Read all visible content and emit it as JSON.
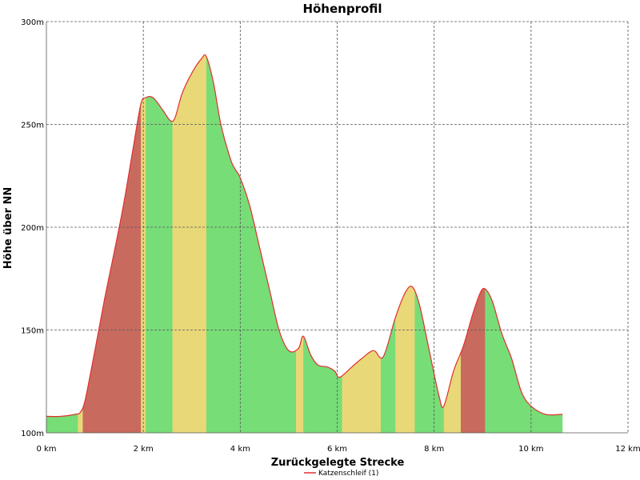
{
  "chart_data": {
    "type": "area",
    "title": "Höhenprofil",
    "xlabel": "Zurückgelegte Strecke",
    "ylabel": "Höhe über NN",
    "xlim": [
      0,
      12
    ],
    "ylim": [
      100,
      300
    ],
    "x_ticks": [
      "0 km",
      "2 km",
      "4 km",
      "6 km",
      "8 km",
      "10 km",
      "12 km"
    ],
    "y_ticks": [
      "100m",
      "150m",
      "200m",
      "250m",
      "300m"
    ],
    "grid": true,
    "legend_position": "bottom-center",
    "series": [
      {
        "name": "Katzenschleif (1)",
        "line_color": "#e03030",
        "x": [
          0,
          0.3,
          0.6,
          0.7,
          0.8,
          1.0,
          1.2,
          1.4,
          1.6,
          1.8,
          1.95,
          2.05,
          2.2,
          2.4,
          2.55,
          2.65,
          2.8,
          3.0,
          3.2,
          3.3,
          3.45,
          3.6,
          3.8,
          3.9,
          4.0,
          4.2,
          4.4,
          4.6,
          4.8,
          5.0,
          5.2,
          5.3,
          5.45,
          5.6,
          5.8,
          5.95,
          6.05,
          6.3,
          6.5,
          6.75,
          6.95,
          7.2,
          7.4,
          7.55,
          7.7,
          7.9,
          8.1,
          8.2,
          8.4,
          8.6,
          8.8,
          8.95,
          9.05,
          9.2,
          9.4,
          9.6,
          9.8,
          10.0,
          10.3,
          10.65
        ],
        "values": [
          108,
          108,
          109,
          110,
          116,
          140,
          165,
          188,
          212,
          240,
          260,
          263,
          263,
          257,
          252,
          253,
          265,
          275,
          282,
          283,
          270,
          250,
          233,
          228,
          224,
          210,
          190,
          170,
          150,
          140,
          141,
          147,
          138,
          133,
          132,
          130,
          127,
          132,
          136,
          140,
          137,
          156,
          168,
          171,
          162,
          140,
          118,
          113,
          130,
          142,
          158,
          168,
          170,
          164,
          148,
          136,
          120,
          113,
          109,
          109
        ]
      }
    ],
    "slope_bands": [
      {
        "x0": 0,
        "x1": 0.65,
        "level": "flat"
      },
      {
        "x0": 0.65,
        "x1": 0.75,
        "level": "moderate"
      },
      {
        "x0": 0.75,
        "x1": 1.95,
        "level": "steep"
      },
      {
        "x0": 1.95,
        "x1": 2.05,
        "level": "moderate"
      },
      {
        "x0": 2.05,
        "x1": 2.6,
        "level": "flat"
      },
      {
        "x0": 2.6,
        "x1": 2.75,
        "level": "moderate"
      },
      {
        "x0": 2.75,
        "x1": 3.3,
        "level": "moderate"
      },
      {
        "x0": 3.3,
        "x1": 5.15,
        "level": "flat"
      },
      {
        "x0": 5.15,
        "x1": 5.3,
        "level": "moderate"
      },
      {
        "x0": 5.3,
        "x1": 6.1,
        "level": "flat"
      },
      {
        "x0": 6.1,
        "x1": 6.9,
        "level": "moderate"
      },
      {
        "x0": 6.9,
        "x1": 7.2,
        "level": "flat"
      },
      {
        "x0": 7.2,
        "x1": 7.6,
        "level": "moderate"
      },
      {
        "x0": 7.6,
        "x1": 8.2,
        "level": "flat"
      },
      {
        "x0": 8.2,
        "x1": 8.55,
        "level": "moderate"
      },
      {
        "x0": 8.55,
        "x1": 9.05,
        "level": "steep"
      },
      {
        "x0": 9.05,
        "x1": 10.65,
        "level": "flat"
      }
    ],
    "colors": {
      "flat": "#77dd77",
      "moderate": "#e8d878",
      "steep": "#c96a5f",
      "line": "#e03030",
      "grid": "#555555"
    }
  }
}
